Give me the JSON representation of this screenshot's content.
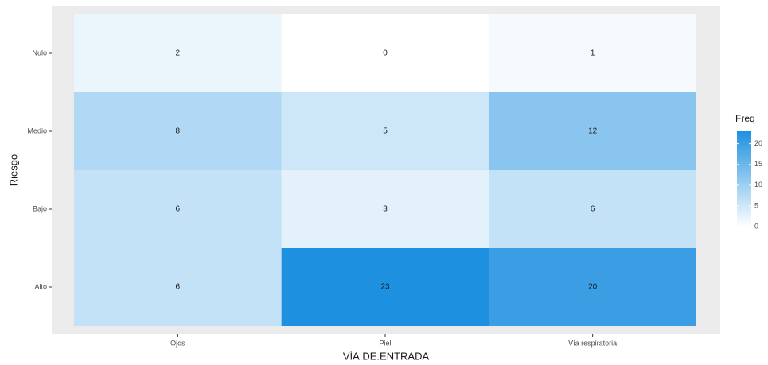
{
  "chart_data": {
    "type": "heatmap",
    "x_label": "VÍA.DE.ENTRADA",
    "y_label": "Riesgo",
    "x_categories": [
      "Ojos",
      "Piel",
      "Vía respiratoria"
    ],
    "y_categories": [
      "Alto",
      "Bajo",
      "Medio",
      "Nulo"
    ],
    "values": [
      [
        6,
        23,
        20
      ],
      [
        6,
        3,
        6
      ],
      [
        8,
        5,
        12
      ],
      [
        2,
        0,
        1
      ]
    ],
    "legend_title": "Freq",
    "colors": {
      "low": "#ffffff",
      "high": "#1e90e0"
    },
    "clim": [
      0,
      23
    ],
    "cticks": [
      0,
      5,
      10,
      15,
      20
    ]
  }
}
